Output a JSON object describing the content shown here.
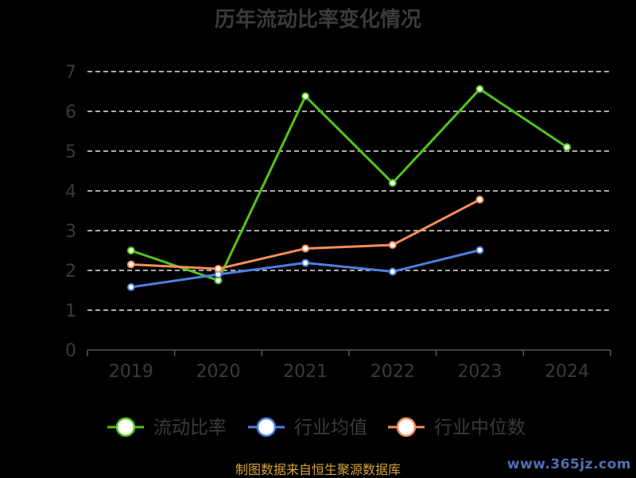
{
  "source_note": "制图数据来自恒生聚源数据库",
  "watermark": "www.365jz.com",
  "chart_data": {
    "type": "line",
    "title": "历年流动比率变化情况",
    "xlabel": "",
    "ylabel": "",
    "categories": [
      "2019",
      "2020",
      "2021",
      "2022",
      "2023",
      "2024"
    ],
    "ylim": [
      0,
      7
    ],
    "yticks": [
      0,
      1,
      2,
      3,
      4,
      5,
      6,
      7
    ],
    "grid": "horizontal dashed",
    "legend_position": "bottom",
    "series": [
      {
        "name": "流动比率",
        "color": "#52c41a",
        "values": [
          2.5,
          1.75,
          6.38,
          4.2,
          6.56,
          5.1
        ]
      },
      {
        "name": "行业均值",
        "color": "#4e7fe0",
        "values": [
          1.58,
          1.9,
          2.19,
          1.97,
          2.51,
          null
        ]
      },
      {
        "name": "行业中位数",
        "color": "#f58d5b",
        "values": [
          2.15,
          2.04,
          2.55,
          2.64,
          3.78,
          null
        ]
      }
    ]
  }
}
